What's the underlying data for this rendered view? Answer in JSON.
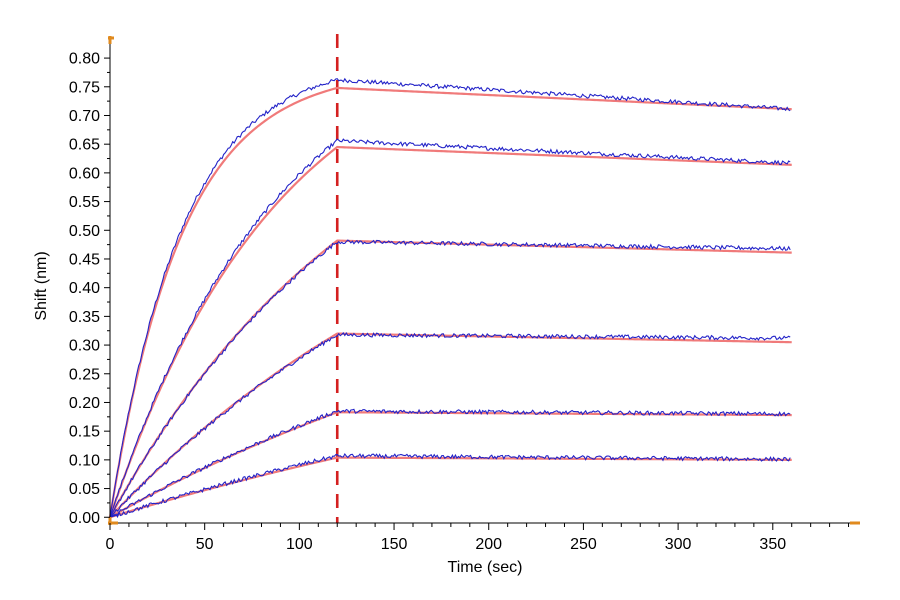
{
  "chart_data": {
    "type": "line",
    "title": "",
    "xlabel": "Time (sec)",
    "ylabel": "Shift (nm)",
    "xlim": [
      0,
      395
    ],
    "ylim": [
      -0.01,
      0.835
    ],
    "x_ticks": [
      0,
      50,
      100,
      150,
      200,
      250,
      300,
      350
    ],
    "y_ticks": [
      0.0,
      0.05,
      0.1,
      0.15,
      0.2,
      0.25,
      0.3,
      0.35,
      0.4,
      0.45,
      0.5,
      0.55,
      0.6,
      0.65,
      0.7,
      0.75,
      0.8
    ],
    "grid": false,
    "legend": "none",
    "association_end_time": 120,
    "end_time": 360,
    "colors": {
      "measured": "#2323c8",
      "fit": "#f07a7a",
      "marker_line": "#d42020",
      "axis_ends": "#e08a1e"
    },
    "series": [
      {
        "peak": 0.762,
        "end": 0.711
      },
      {
        "peak": 0.656,
        "end": 0.617
      },
      {
        "peak": 0.48,
        "end": 0.468
      },
      {
        "peak": 0.318,
        "end": 0.312
      },
      {
        "peak": 0.185,
        "end": 0.18
      },
      {
        "peak": 0.107,
        "end": 0.101
      }
    ],
    "fits": [
      {
        "peak": 0.748,
        "end": 0.711,
        "tau": 38
      },
      {
        "peak": 0.645,
        "end": 0.614,
        "tau": 90
      },
      {
        "peak": 0.482,
        "end": 0.461,
        "tau": 140
      },
      {
        "peak": 0.32,
        "end": 0.305,
        "tau": 210
      },
      {
        "peak": 0.183,
        "end": 0.178,
        "tau": 280
      },
      {
        "peak": 0.104,
        "end": 0.1,
        "tau": 400
      }
    ]
  }
}
